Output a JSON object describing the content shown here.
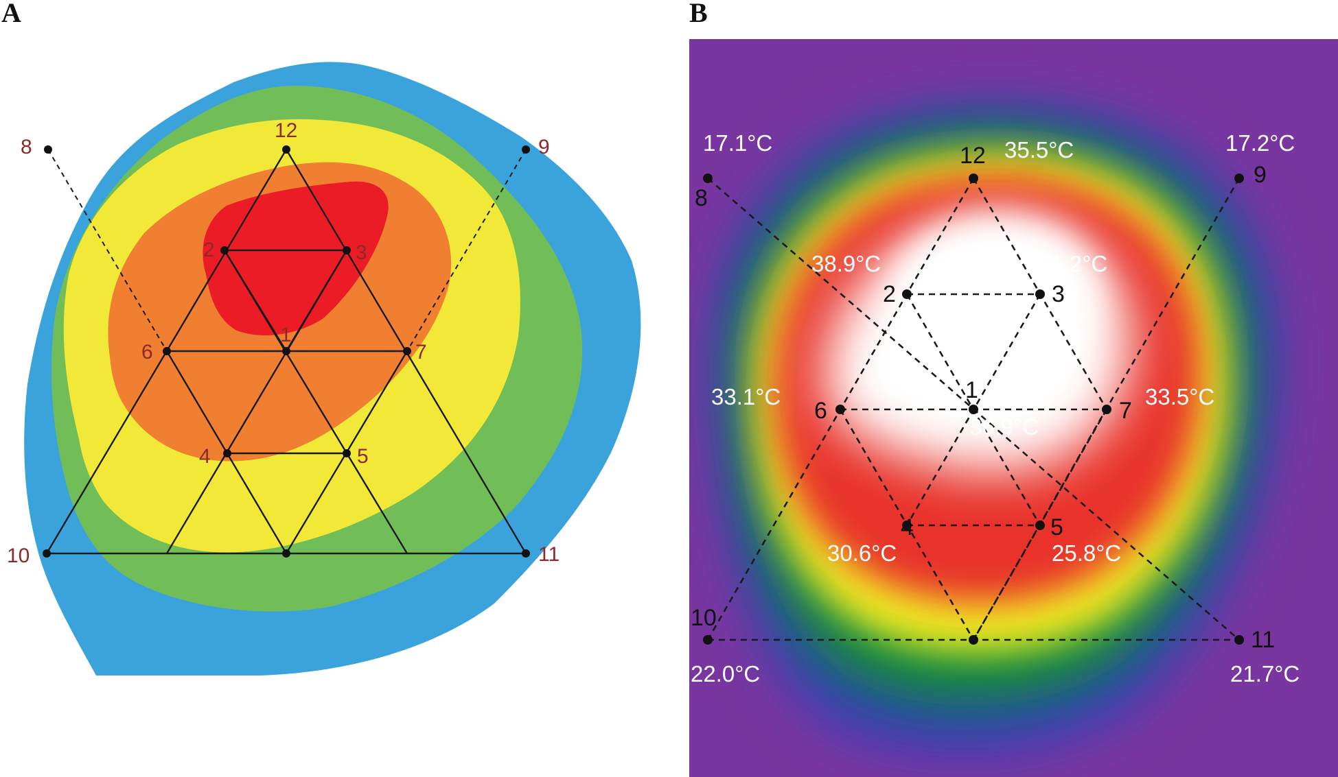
{
  "panels": {
    "a": {
      "letter": "A",
      "zone_colors": [
        "#3aa3dc",
        "#71be58",
        "#f2e838",
        "#f07f31",
        "#ec1c27"
      ],
      "points": [
        {
          "id": "p1",
          "label": "1"
        },
        {
          "id": "p2",
          "label": "2"
        },
        {
          "id": "p3",
          "label": "3"
        },
        {
          "id": "p4",
          "label": "4"
        },
        {
          "id": "p5",
          "label": "5"
        },
        {
          "id": "p6",
          "label": "6"
        },
        {
          "id": "p7",
          "label": "7"
        },
        {
          "id": "p8",
          "label": "8"
        },
        {
          "id": "p9",
          "label": "9"
        },
        {
          "id": "p10",
          "label": "10"
        },
        {
          "id": "p11",
          "label": "11"
        },
        {
          "id": "p12",
          "label": "12"
        }
      ]
    },
    "b": {
      "letter": "B",
      "thermal_colors": [
        "#7a36a0",
        "#3340b8",
        "#0f8a3a",
        "#f2ee20",
        "#e8332a",
        "#ffffff"
      ],
      "points": [
        {
          "id": "p1",
          "label": "1"
        },
        {
          "id": "p2",
          "label": "2"
        },
        {
          "id": "p3",
          "label": "3"
        },
        {
          "id": "p4",
          "label": "4"
        },
        {
          "id": "p5",
          "label": "5"
        },
        {
          "id": "p6",
          "label": "6"
        },
        {
          "id": "p7",
          "label": "7"
        },
        {
          "id": "p8",
          "label": "8"
        },
        {
          "id": "p9",
          "label": "9"
        },
        {
          "id": "p10",
          "label": "10"
        },
        {
          "id": "p11",
          "label": "11"
        },
        {
          "id": "p12",
          "label": "12"
        }
      ],
      "temperatures": [
        {
          "point": "8",
          "value": "17.1°C"
        },
        {
          "point": "12",
          "value": "35.5°C"
        },
        {
          "point": "9",
          "value": "17.2°C"
        },
        {
          "point": "2",
          "value": "38.9°C"
        },
        {
          "point": "3",
          "value": "41.2°C"
        },
        {
          "point": "6",
          "value": "33.1°C"
        },
        {
          "point": "1",
          "value": "36.9°C"
        },
        {
          "point": "7",
          "value": "33.5°C"
        },
        {
          "point": "4",
          "value": "30.6°C"
        },
        {
          "point": "5",
          "value": "25.8°C"
        },
        {
          "point": "10",
          "value": "22.0°C"
        },
        {
          "point": "11",
          "value": "21.7°C"
        }
      ]
    }
  }
}
